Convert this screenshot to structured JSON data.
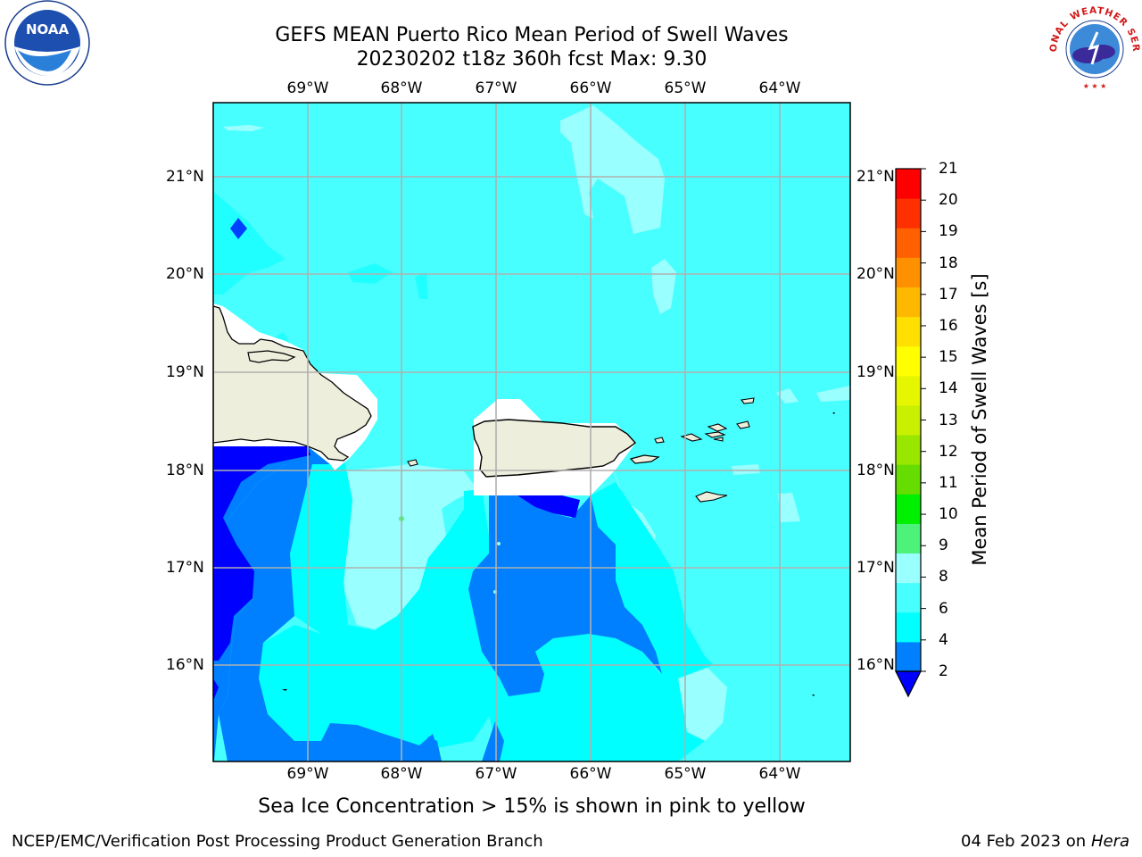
{
  "title": {
    "line1": "GEFS MEAN Puerto Rico Mean Period of Swell Waves",
    "line2": "20230202 t18z 360h fcst   Max: 9.30"
  },
  "map": {
    "lon_labels": [
      "69°W",
      "68°W",
      "67°W",
      "66°W",
      "65°W",
      "64°W"
    ],
    "lat_labels": [
      "21°N",
      "20°N",
      "19°N",
      "18°N",
      "17°N",
      "16°N"
    ],
    "extent": {
      "lon_min": -70.0,
      "lon_max": -63.3,
      "lat_min": 15.0,
      "lat_max": 21.75
    },
    "colors": {
      "ocean_base": "#48ffff",
      "land": "#eeeedd",
      "grid": "#b0b0b0"
    }
  },
  "colorbar": {
    "title": "Mean Period of Swell Waves [s]",
    "ticks": [
      "2",
      "4",
      "6",
      "8",
      "9",
      "10",
      "11",
      "12",
      "13",
      "14",
      "15",
      "16",
      "17",
      "18",
      "19",
      "20",
      "21"
    ],
    "colors": [
      "#0080ff",
      "#00ffff",
      "#48ffff",
      "#99ffff",
      "#4df27a",
      "#00f000",
      "#66dd00",
      "#99e600",
      "#c8f000",
      "#e6f500",
      "#ffff00",
      "#ffe000",
      "#ffb800",
      "#ff9000",
      "#ff6000",
      "#ff3000",
      "#ff0000"
    ],
    "under_color": "#0000ff"
  },
  "subtitle": "Sea Ice Concentration > 15% is shown in pink to yellow",
  "footer": {
    "left": "NCEP/EMC/Verification Post Processing Product Generation Branch",
    "date": "04 Feb 2023 on",
    "machine": "Hera"
  },
  "logos": {
    "noaa": "NOAA",
    "nws": "NATIONAL WEATHER SERVICE"
  }
}
